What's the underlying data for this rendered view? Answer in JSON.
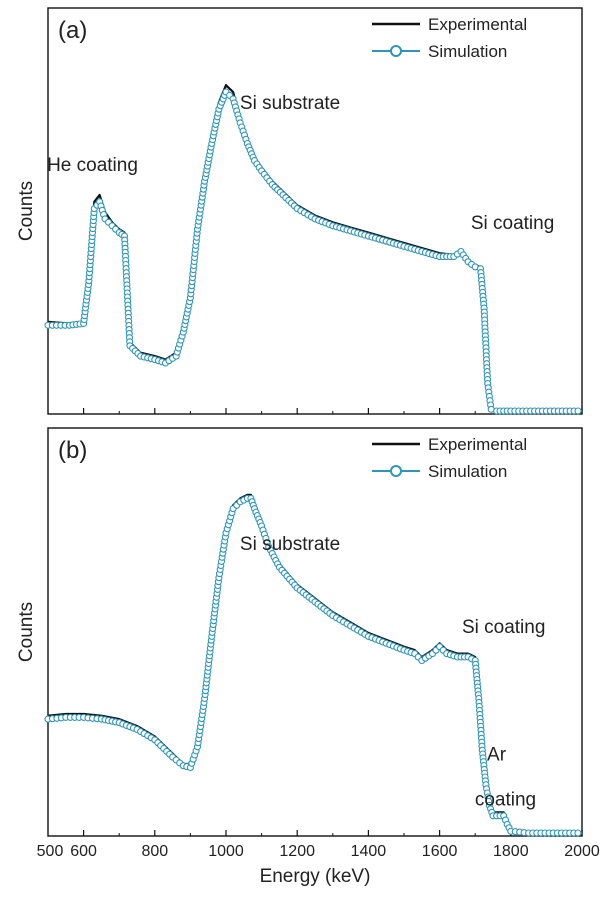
{
  "chart_data": [
    {
      "type": "line",
      "panel_label": "(a)",
      "xlim": [
        500,
        2000
      ],
      "ylim": [
        0,
        100
      ],
      "ylabel": "Counts",
      "xlabel": "",
      "x_tick_labels_shown": false,
      "grid": false,
      "legend_position": "top-right",
      "series": [
        {
          "name": "Experimental",
          "style": "line",
          "color": "#111111",
          "x": [
            500,
            560,
            600,
            615,
            630,
            645,
            660,
            680,
            700,
            715,
            730,
            760,
            800,
            830,
            860,
            880,
            900,
            920,
            940,
            960,
            980,
            1000,
            1020,
            1040,
            1060,
            1080,
            1100,
            1130,
            1160,
            1200,
            1250,
            1300,
            1350,
            1400,
            1450,
            1500,
            1550,
            1600,
            1640,
            1660,
            1680,
            1700,
            1715,
            1725,
            1735,
            1745,
            1760,
            1800,
            1900,
            2000
          ],
          "y": [
            26,
            25.5,
            26,
            40,
            61,
            63,
            58,
            55,
            53,
            52,
            20,
            17,
            16,
            15,
            17,
            24,
            35,
            55,
            69,
            80,
            90,
            95,
            93,
            85,
            79,
            74,
            71,
            67,
            64,
            60,
            57,
            55,
            53.5,
            52,
            50.5,
            49,
            47.5,
            46,
            45.5,
            46,
            44,
            42.5,
            42,
            30,
            8,
            0.5,
            0,
            0,
            0,
            0
          ]
        },
        {
          "name": "Simulation",
          "style": "line-with-open-circles",
          "color": "#2f95b8",
          "x": [
            500,
            560,
            600,
            615,
            630,
            645,
            660,
            680,
            700,
            715,
            730,
            760,
            800,
            830,
            860,
            880,
            900,
            920,
            940,
            960,
            980,
            1000,
            1020,
            1040,
            1060,
            1080,
            1100,
            1130,
            1160,
            1200,
            1250,
            1300,
            1350,
            1400,
            1450,
            1500,
            1550,
            1600,
            1640,
            1660,
            1680,
            1700,
            1715,
            1725,
            1735,
            1745,
            1760,
            1800,
            1900,
            2000
          ],
          "y": [
            25,
            25,
            25.5,
            38,
            59,
            61,
            56,
            54,
            52,
            51,
            19,
            16,
            15,
            14,
            16,
            23,
            33,
            53,
            67,
            78,
            88,
            93,
            91,
            84,
            78,
            73,
            70,
            66,
            63,
            59,
            56,
            54,
            52.5,
            51,
            49.5,
            48,
            46.5,
            45,
            45,
            46.5,
            43.5,
            42,
            41.5,
            30,
            8,
            0.5,
            0,
            0,
            0,
            0
          ]
        }
      ],
      "annotations": [
        {
          "text": "He coating",
          "x": 625,
          "y": 70
        },
        {
          "text": "Si substrate",
          "x": 1180,
          "y": 88
        },
        {
          "text": "Si coating",
          "x": 1805,
          "y": 53
        }
      ]
    },
    {
      "type": "line",
      "panel_label": "(b)",
      "xlim": [
        500,
        2000
      ],
      "ylim": [
        0,
        100
      ],
      "ylabel": "Counts",
      "xlabel": "Energy (keV)",
      "xticks": [
        600,
        800,
        1000,
        1200,
        1400,
        1600,
        1800,
        2000
      ],
      "x_tick_labels": [
        "600",
        "800",
        "1000",
        "1200",
        "1400",
        "1600",
        "1800",
        "2000"
      ],
      "grid": false,
      "legend_position": "top-right",
      "series": [
        {
          "name": "Experimental",
          "style": "line",
          "color": "#111111",
          "x": [
            500,
            550,
            600,
            650,
            700,
            750,
            800,
            850,
            880,
            900,
            920,
            940,
            960,
            980,
            1000,
            1020,
            1040,
            1060,
            1070,
            1080,
            1100,
            1120,
            1150,
            1200,
            1250,
            1300,
            1350,
            1400,
            1450,
            1500,
            1530,
            1550,
            1580,
            1600,
            1620,
            1650,
            1680,
            1700,
            1710,
            1720,
            1730,
            1740,
            1750,
            1760,
            1780,
            1790,
            1800,
            1850,
            2000
          ],
          "y": [
            34,
            34.5,
            34.5,
            34,
            33,
            31,
            28,
            23,
            20,
            20,
            26,
            40,
            58,
            75,
            88,
            95,
            97,
            98,
            98,
            95,
            90,
            84,
            78,
            72,
            68,
            64,
            61,
            58,
            56,
            54,
            53,
            51,
            53,
            55,
            53,
            52,
            52,
            51,
            40,
            25,
            15,
            9,
            6,
            6,
            6,
            3,
            0.5,
            0,
            0
          ]
        },
        {
          "name": "Simulation",
          "style": "line-with-open-circles",
          "color": "#2f95b8",
          "x": [
            500,
            550,
            600,
            650,
            700,
            750,
            800,
            850,
            880,
            900,
            920,
            940,
            960,
            980,
            1000,
            1020,
            1040,
            1060,
            1070,
            1080,
            1100,
            1120,
            1150,
            1200,
            1250,
            1300,
            1350,
            1400,
            1450,
            1500,
            1530,
            1550,
            1580,
            1600,
            1620,
            1650,
            1680,
            1700,
            1710,
            1720,
            1730,
            1740,
            1750,
            1760,
            1780,
            1790,
            1800,
            1850,
            2000
          ],
          "y": [
            33,
            33.5,
            33.5,
            33,
            32,
            30,
            27,
            22,
            19.5,
            19,
            25,
            39,
            57,
            74,
            87,
            94,
            96,
            97,
            97,
            94,
            89,
            83,
            77,
            71,
            67,
            63,
            60,
            57,
            55,
            53,
            52,
            50,
            52,
            54,
            52,
            51,
            51,
            50,
            39,
            24,
            14,
            8,
            5,
            5,
            5,
            2.5,
            0.5,
            0,
            0
          ]
        }
      ],
      "annotations": [
        {
          "text": "Si substrate",
          "x": 1180,
          "y": 82
        },
        {
          "text": "Si coating",
          "x": 1780,
          "y": 58
        },
        {
          "text": "Ar",
          "x": 1760,
          "y": 21
        },
        {
          "text": "coating",
          "x": 1785,
          "y": 8
        }
      ]
    }
  ]
}
